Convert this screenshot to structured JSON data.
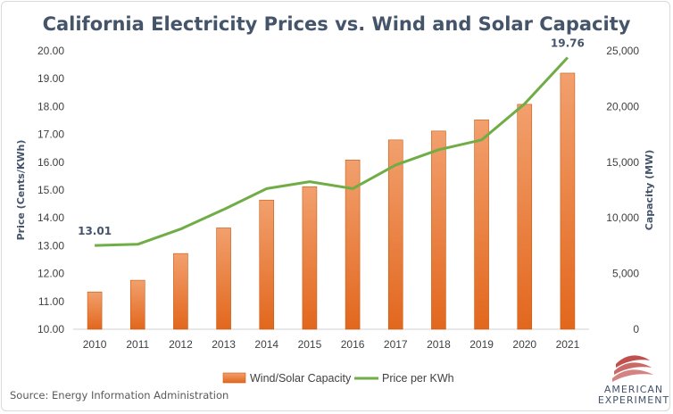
{
  "chart_data": {
    "type": "bar+line",
    "title": "California Electricity Prices vs. Wind and Solar Capacity",
    "categories": [
      "2010",
      "2011",
      "2012",
      "2013",
      "2014",
      "2015",
      "2016",
      "2017",
      "2018",
      "2019",
      "2020",
      "2021"
    ],
    "series": [
      {
        "name": "Wind/Solar Capacity",
        "type": "bar",
        "axis": "right",
        "color": "#ed7d31",
        "values": [
          3350,
          4400,
          6800,
          9100,
          11600,
          12800,
          15200,
          17000,
          17800,
          18800,
          20200,
          23000
        ]
      },
      {
        "name": "Price per KWh",
        "type": "line",
        "axis": "left",
        "color": "#70ad47",
        "values": [
          13.01,
          13.05,
          13.6,
          14.3,
          15.05,
          15.3,
          15.05,
          15.9,
          16.45,
          16.8,
          18.1,
          19.76
        ]
      }
    ],
    "ylabel_left": "Price (Cents/KWh)",
    "ylabel_right": "Capacity (MW)",
    "yleft_lim": [
      10,
      20
    ],
    "yleft_ticks": [
      "10.00",
      "11.00",
      "12.00",
      "13.00",
      "14.00",
      "15.00",
      "16.00",
      "17.00",
      "18.00",
      "19.00",
      "20.00"
    ],
    "yright_lim": [
      0,
      25000
    ],
    "yright_ticks": [
      "0",
      "5,000",
      "10,000",
      "15,000",
      "20,000",
      "25,000"
    ],
    "data_labels": [
      {
        "series": "Price per KWh",
        "index": 0,
        "text": "13.01"
      },
      {
        "series": "Price per KWh",
        "index": 11,
        "text": "19.76"
      }
    ],
    "grid": false,
    "legend_position": "bottom"
  },
  "source": "Source: Energy Information Administration",
  "logo": {
    "line1": "AMERICAN",
    "line2": "EXPERIMENT",
    "colors": {
      "stripes": "#c0504d",
      "text": "#44546a"
    }
  }
}
